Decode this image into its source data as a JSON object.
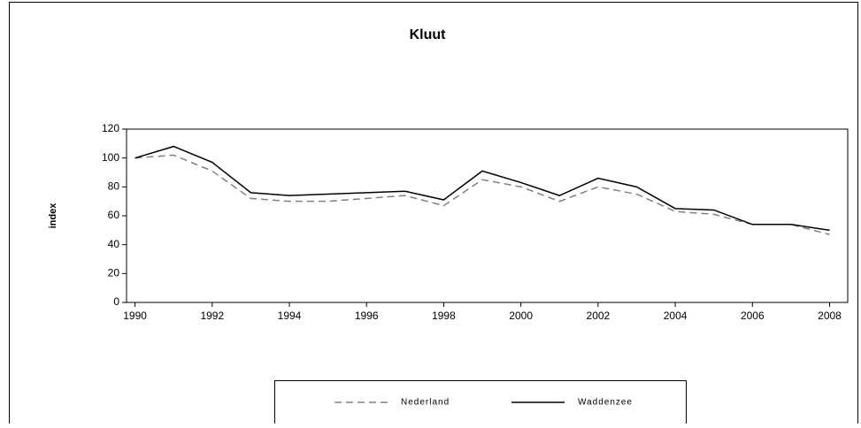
{
  "chart_data": {
    "type": "line",
    "title": "Kluut",
    "y_label": "index",
    "x": [
      1990,
      1991,
      1992,
      1993,
      1994,
      1995,
      1996,
      1997,
      1998,
      1999,
      2000,
      2001,
      2002,
      2003,
      2004,
      2005,
      2006,
      2007,
      2008
    ],
    "series": [
      {
        "name": "Nederland",
        "color": "#808080",
        "dashed": true,
        "values": [
          100,
          102,
          91,
          72,
          70,
          70,
          72,
          74,
          67,
          85,
          80,
          70,
          80,
          75,
          63,
          61,
          54,
          54,
          47
        ]
      },
      {
        "name": "Waddenzee",
        "color": "#000000",
        "dashed": false,
        "values": [
          100,
          108,
          97,
          76,
          74,
          75,
          76,
          77,
          71,
          91,
          83,
          74,
          86,
          80,
          65,
          64,
          54,
          54,
          50
        ]
      }
    ],
    "xlim": [
      1989.78,
      2008.47
    ],
    "xticks": [
      1990,
      1992,
      1994,
      1996,
      1998,
      2000,
      2002,
      2004,
      2006,
      2008
    ],
    "ylim": [
      0,
      120
    ],
    "yticks": [
      0,
      20,
      40,
      60,
      80,
      100,
      120
    ]
  }
}
